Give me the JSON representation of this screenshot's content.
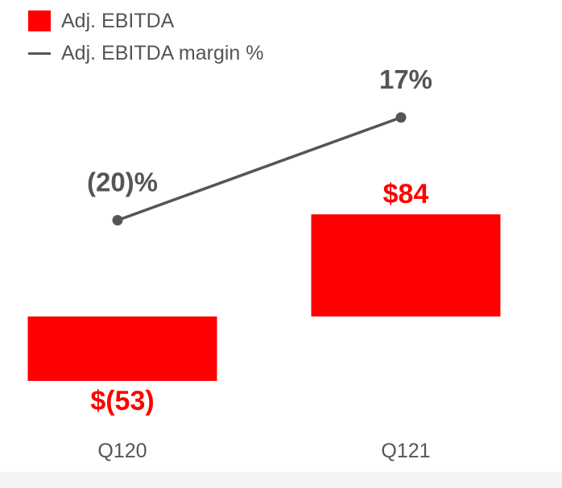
{
  "legend": {
    "bar_label": "Adj. EBITDA",
    "line_label": "Adj. EBITDA margin %"
  },
  "colors": {
    "bar": "#ff0000",
    "line": "#555555",
    "tick_text": "#555555",
    "background": "#ffffff"
  },
  "chart_data": {
    "type": "bar",
    "categories": [
      "Q120",
      "Q121"
    ],
    "series": [
      {
        "name": "Adj. EBITDA",
        "type": "bar",
        "values": [
          -53,
          84
        ],
        "labels": [
          "$(53)",
          "$84"
        ]
      },
      {
        "name": "Adj. EBITDA margin %",
        "type": "line",
        "values": [
          -20,
          17
        ],
        "labels": [
          "(20)%",
          "17%"
        ]
      }
    ],
    "legend_position": "top-left",
    "grid": false,
    "axes_visible": false
  }
}
